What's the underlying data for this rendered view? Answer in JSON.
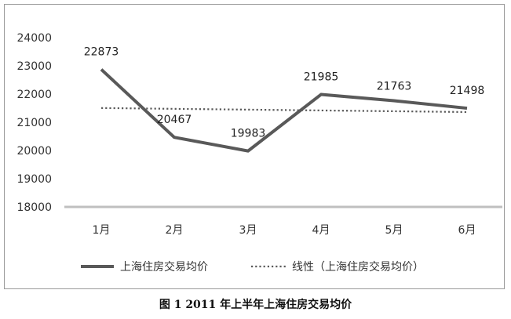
{
  "chart_data": {
    "type": "line",
    "categories": [
      "1月",
      "2月",
      "3月",
      "4月",
      "5月",
      "6月"
    ],
    "series": [
      {
        "name": "上海住房交易均价",
        "values": [
          22873,
          20467,
          19983,
          21985,
          21763,
          21498
        ],
        "color": "#595959",
        "style": "solid"
      },
      {
        "name": "线性（上海住房交易均价）",
        "values": [
          21505,
          21476,
          21448,
          21419,
          21391,
          21362
        ],
        "color": "#595959",
        "style": "dotted"
      }
    ],
    "data_labels": [
      "22873",
      "20467",
      "19983",
      "21985",
      "21763",
      "21498"
    ],
    "ylim": [
      18000,
      24000
    ],
    "yticks": [
      "24000",
      "23000",
      "22000",
      "21000",
      "20000",
      "19000",
      "18000"
    ],
    "grid": false,
    "legend_position": "bottom",
    "axis_color": "#bfbfbf"
  },
  "caption": "图 1  2011 年上半年上海住房交易均价"
}
